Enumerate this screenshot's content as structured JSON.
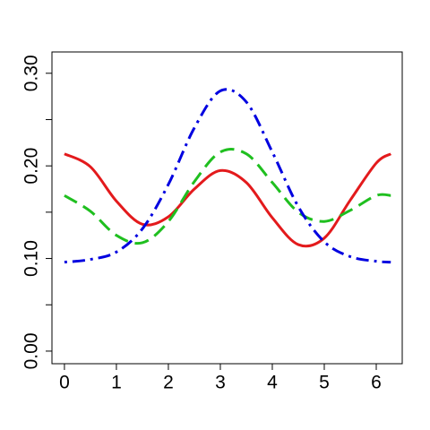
{
  "chart_data": {
    "type": "line",
    "x": [
      0,
      0.5,
      1,
      1.5,
      2,
      2.5,
      3,
      3.5,
      4,
      4.5,
      5,
      5.5,
      6,
      6.28
    ],
    "series": [
      {
        "color": "#e31a1c",
        "linestyle": "solid",
        "values": [
          0.213,
          0.199,
          0.162,
          0.137,
          0.145,
          0.175,
          0.195,
          0.182,
          0.144,
          0.115,
          0.122,
          0.163,
          0.203,
          0.213
        ]
      },
      {
        "color": "#1fbf1f",
        "linestyle": "dashed",
        "values": [
          0.168,
          0.151,
          0.125,
          0.117,
          0.14,
          0.183,
          0.215,
          0.213,
          0.182,
          0.15,
          0.14,
          0.152,
          0.168,
          0.168
        ]
      },
      {
        "color": "#0000e0",
        "linestyle": "dotdash",
        "values": [
          0.096,
          0.099,
          0.107,
          0.132,
          0.18,
          0.241,
          0.281,
          0.269,
          0.215,
          0.156,
          0.118,
          0.102,
          0.097,
          0.096
        ]
      }
    ],
    "xlim": [
      -0.24,
      6.5
    ],
    "xticks": [
      0,
      1,
      2,
      3,
      4,
      5,
      6
    ],
    "ylim": [
      -0.0136,
      0.323
    ],
    "yticks": [
      {
        "value": 0,
        "label": "0.00"
      },
      {
        "value": 0.05,
        "label": null
      },
      {
        "value": 0.1,
        "label": "0.10"
      },
      {
        "value": 0.15,
        "label": null
      },
      {
        "value": 0.2,
        "label": "0.20"
      },
      {
        "value": 0.25,
        "label": null
      },
      {
        "value": 0.3,
        "label": "0.30"
      }
    ]
  }
}
